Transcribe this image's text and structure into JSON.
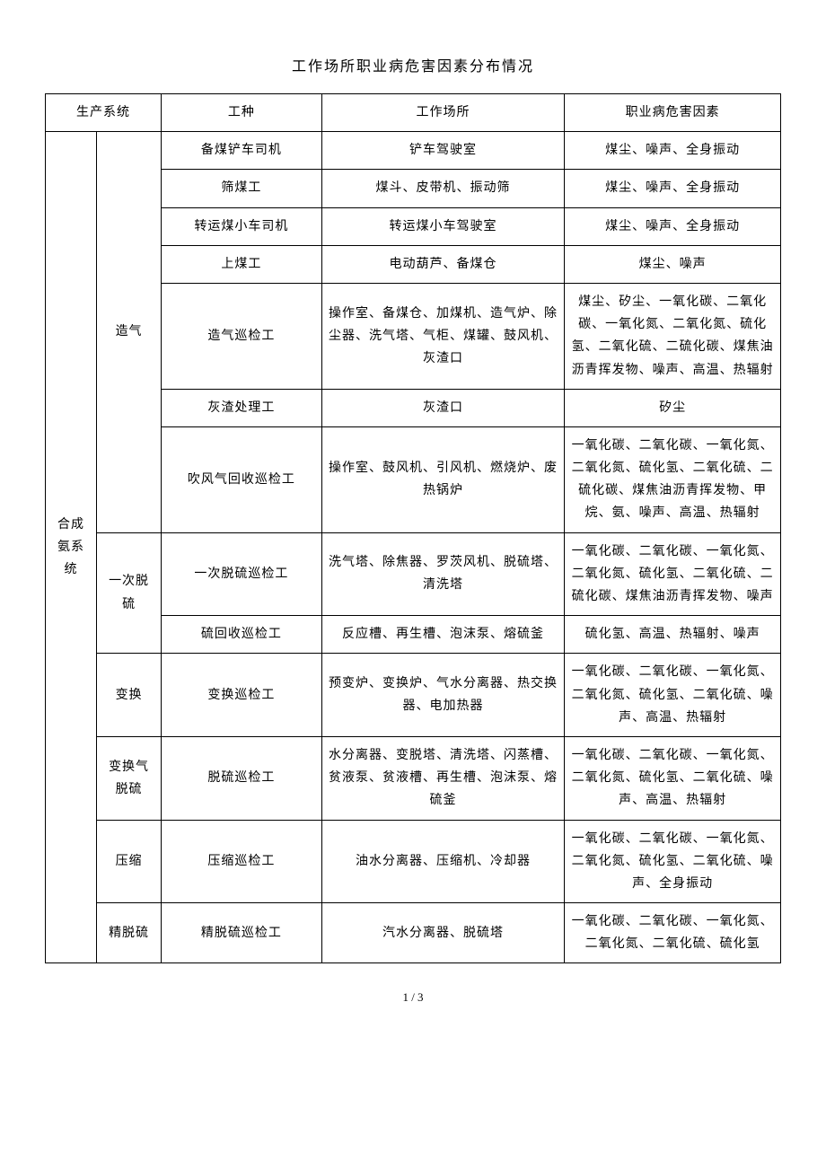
{
  "title": "工作场所职业病危害因素分布情况",
  "page_footer": "1 / 3",
  "header": {
    "col1": "生产系统",
    "col2": "工种",
    "col3": "工作场所",
    "col4": "职业病危害因素"
  },
  "system_l1": "合成氨系统",
  "sections": {
    "zaoqi": {
      "name": "造气",
      "rows": [
        {
          "job": "备煤铲车司机",
          "place": "铲车驾驶室",
          "hazard": "煤尘、噪声、全身振动"
        },
        {
          "job": "筛煤工",
          "place": "煤斗、皮带机、振动筛",
          "hazard": "煤尘、噪声、全身振动"
        },
        {
          "job": "转运煤小车司机",
          "place": "转运煤小车驾驶室",
          "hazard": "煤尘、噪声、全身振动"
        },
        {
          "job": "上煤工",
          "place": "电动葫芦、备煤仓",
          "hazard": "煤尘、噪声"
        },
        {
          "job": "造气巡检工",
          "place": "操作室、备煤仓、加煤机、造气炉、除尘器、洗气塔、气柜、煤罐、鼓风机、灰渣口",
          "hazard": "煤尘、矽尘、一氧化碳、二氧化碳、一氧化氮、二氧化氮、硫化氢、二氧化硫、二硫化碳、煤焦油沥青挥发物、噪声、高温、热辐射"
        },
        {
          "job": "灰渣处理工",
          "place": "灰渣口",
          "hazard": "矽尘"
        },
        {
          "job": "吹风气回收巡检工",
          "place": "操作室、鼓风机、引风机、燃烧炉、废热锅炉",
          "hazard": "一氧化碳、二氧化碳、一氧化氮、二氧化氮、硫化氢、二氧化硫、二硫化碳、煤焦油沥青挥发物、甲烷、氨、噪声、高温、热辐射"
        }
      ]
    },
    "yici_tuoliu": {
      "name": "一次脱硫",
      "rows": [
        {
          "job": "一次脱硫巡检工",
          "place": "洗气塔、除焦器、罗茨风机、脱硫塔、清洗塔",
          "hazard": "一氧化碳、二氧化碳、一氧化氮、二氧化氮、硫化氢、二氧化硫、二硫化碳、煤焦油沥青挥发物、噪声"
        },
        {
          "job": "硫回收巡检工",
          "place": "反应槽、再生槽、泡沫泵、熔硫釜",
          "hazard": "硫化氢、高温、热辐射、噪声"
        }
      ]
    },
    "bianhuan": {
      "name": "变换",
      "rows": [
        {
          "job": "变换巡检工",
          "place": "预变炉、变换炉、气水分离器、热交换器、电加热器",
          "hazard": "一氧化碳、二氧化碳、一氧化氮、二氧化氮、硫化氢、二氧化硫、噪声、高温、热辐射"
        }
      ]
    },
    "bianhuanqi_tuoliu": {
      "name": "变换气脱硫",
      "rows": [
        {
          "job": "脱硫巡检工",
          "place": "水分离器、变脱塔、清洗塔、闪蒸槽、贫液泵、贫液槽、再生槽、泡沫泵、熔硫釜",
          "hazard": "一氧化碳、二氧化碳、一氧化氮、二氧化氮、硫化氢、二氧化硫、噪声、高温、热辐射"
        }
      ]
    },
    "yasuo": {
      "name": "压缩",
      "rows": [
        {
          "job": "压缩巡检工",
          "place": "油水分离器、压缩机、冷却器",
          "hazard": "一氧化碳、二氧化碳、一氧化氮、二氧化氮、硫化氢、二氧化硫、噪声、全身振动"
        }
      ]
    },
    "jingtuoliu": {
      "name": "精脱硫",
      "rows": [
        {
          "job": "精脱硫巡检工",
          "place": "汽水分离器、脱硫塔",
          "hazard": "一氧化碳、二氧化碳、一氧化氮、二氧化氮、二氧化硫、硫化氢"
        }
      ]
    }
  }
}
